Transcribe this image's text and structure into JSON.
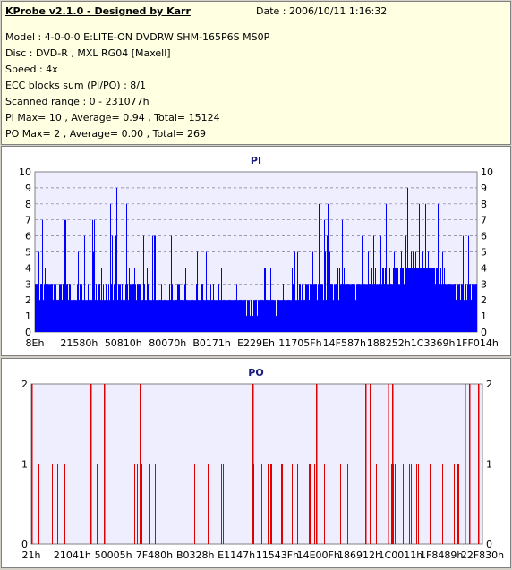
{
  "info": {
    "app_title": "KProbe v2.1.0 - Designed by Karr",
    "date": "Date : 2006/10/11 1:16:32",
    "model": "Model : 4-0-0-0 E:LITE-ON DVDRW SHM-165P6S MS0P",
    "disc": "Disc : DVD-R , MXL RG04 [Maxell]",
    "speed": "Speed : 4x",
    "ecc": "ECC blocks sum (PI/PO) : 8/1",
    "scanned_range": "Scanned range : 0 - 231077h",
    "pi_stats": "PI Max= 10 , Average= 0.94 , Total= 15124",
    "po_stats": "PO Max= 2 , Average= 0.00 , Total= 269"
  },
  "colors": {
    "pi_bars": "#0000ff",
    "po_bars": "#e00000",
    "plot_bg": "#eeeeff",
    "panel_bg": "#ffffe1"
  },
  "chart_data": [
    {
      "type": "bar",
      "title": "PI",
      "ylim": [
        0,
        10
      ],
      "yticks": [
        "0",
        "1",
        "2",
        "3",
        "4",
        "5",
        "6",
        "7",
        "8",
        "9",
        "10"
      ],
      "xticks": [
        "8Eh",
        "21580h",
        "50810h",
        "80070h",
        "B0171h",
        "E229Eh",
        "11705Fh",
        "14F587h",
        "188252h",
        "1C3369h",
        "1FF014h"
      ],
      "grid": true,
      "profile": [
        {
          "x": 0.0,
          "base": 2.8,
          "peak": 8
        },
        {
          "x": 0.05,
          "base": 2.6,
          "peak": 7
        },
        {
          "x": 0.1,
          "base": 2.5,
          "peak": 6
        },
        {
          "x": 0.15,
          "base": 2.4,
          "peak": 7
        },
        {
          "x": 0.18,
          "base": 2.6,
          "peak": 9
        },
        {
          "x": 0.22,
          "base": 2.5,
          "peak": 7
        },
        {
          "x": 0.28,
          "base": 2.2,
          "peak": 6
        },
        {
          "x": 0.35,
          "base": 2.1,
          "peak": 5
        },
        {
          "x": 0.42,
          "base": 2.0,
          "peak": 5
        },
        {
          "x": 0.5,
          "base": 1.9,
          "peak": 4
        },
        {
          "x": 0.55,
          "base": 1.9,
          "peak": 4
        },
        {
          "x": 0.62,
          "base": 2.6,
          "peak": 8
        },
        {
          "x": 0.7,
          "base": 3.0,
          "peak": 8
        },
        {
          "x": 0.78,
          "base": 3.1,
          "peak": 7
        },
        {
          "x": 0.86,
          "base": 4.2,
          "peak": 10
        },
        {
          "x": 0.9,
          "base": 4.0,
          "peak": 8
        },
        {
          "x": 0.95,
          "base": 2.6,
          "peak": 6
        },
        {
          "x": 1.0,
          "base": 2.8,
          "peak": 6
        }
      ]
    },
    {
      "type": "bar",
      "title": "PO",
      "ylim": [
        0,
        2
      ],
      "yticks": [
        "0",
        "1",
        "2"
      ],
      "xticks": [
        "21h",
        "21041h",
        "50005h",
        "7F480h",
        "B0328h",
        "E1147h",
        "11543Fh",
        "14E00Fh",
        "186912h",
        "1C0011h",
        "1F8489h",
        "22F830h"
      ],
      "grid": true,
      "spikes_level2": [
        0.0,
        0.13,
        0.16,
        0.24,
        0.49,
        0.63,
        0.74,
        0.75,
        0.79,
        0.8,
        0.96,
        0.97,
        0.99
      ],
      "density_level1": 0.12
    }
  ]
}
